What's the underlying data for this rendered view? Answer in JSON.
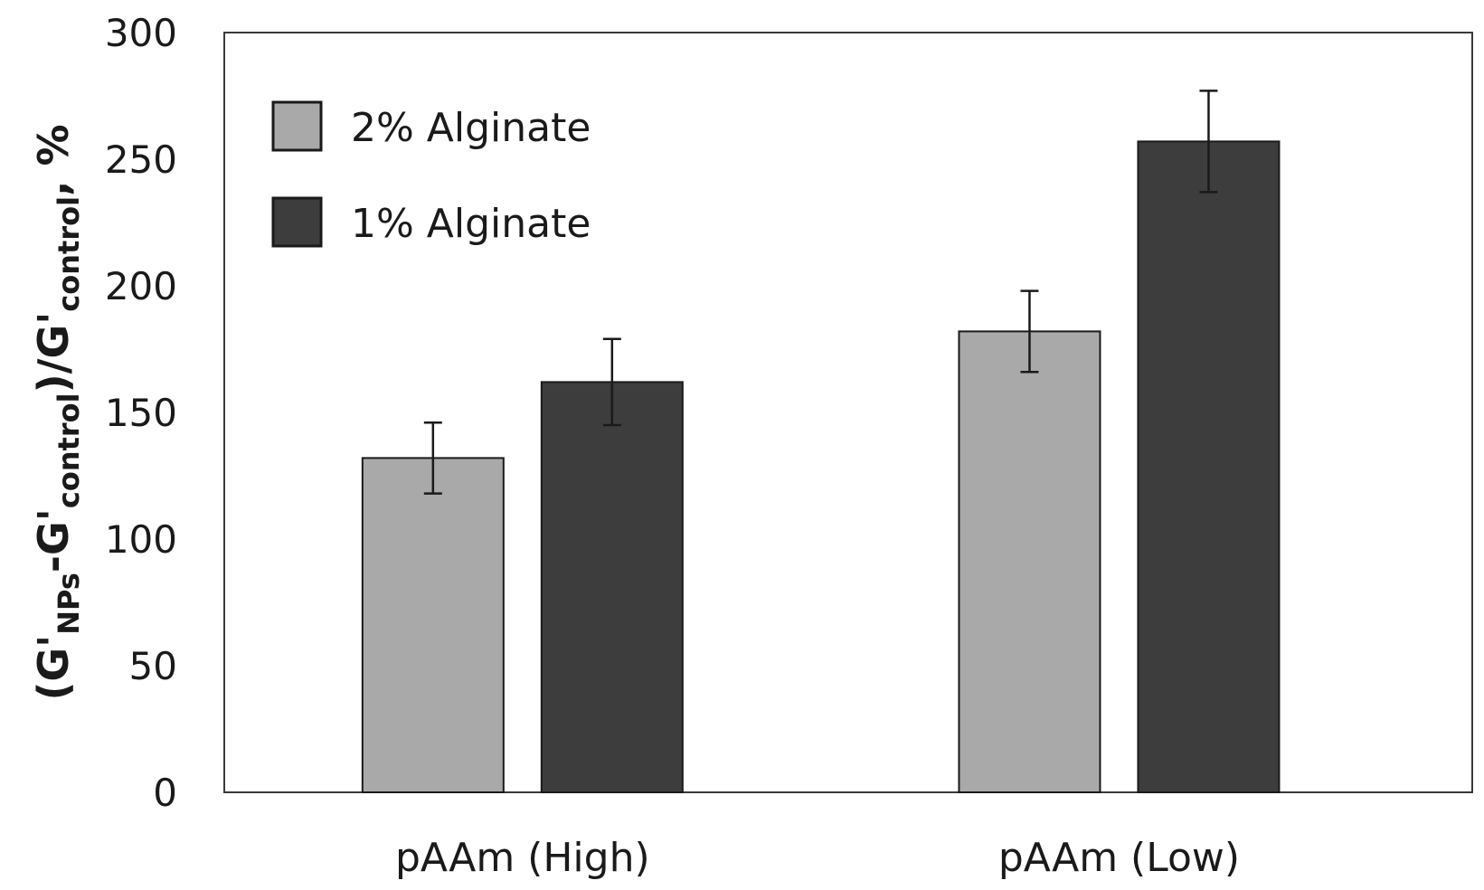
{
  "chart_data": {
    "type": "bar",
    "title": "",
    "xlabel": "",
    "ylabel": {
      "parts": [
        "(G'",
        "NPs",
        "-G'",
        "control",
        ")/G'",
        "control",
        ", %"
      ],
      "subscript_flags": [
        false,
        true,
        false,
        true,
        false,
        true,
        false
      ]
    },
    "categories": [
      "pAAm (High)",
      "pAAm (Low)"
    ],
    "series": [
      {
        "name": "2% Alginate",
        "color": "#a9a9a9",
        "values": [
          132,
          182
        ],
        "errors": [
          14,
          16
        ]
      },
      {
        "name": "1% Alginate",
        "color": "#3d3d3d",
        "values": [
          162,
          257
        ],
        "errors": [
          17,
          20
        ]
      }
    ],
    "ylim": [
      0,
      300
    ],
    "yticks": [
      0,
      50,
      100,
      150,
      200,
      250,
      300
    ],
    "legend_position": "top-left"
  }
}
